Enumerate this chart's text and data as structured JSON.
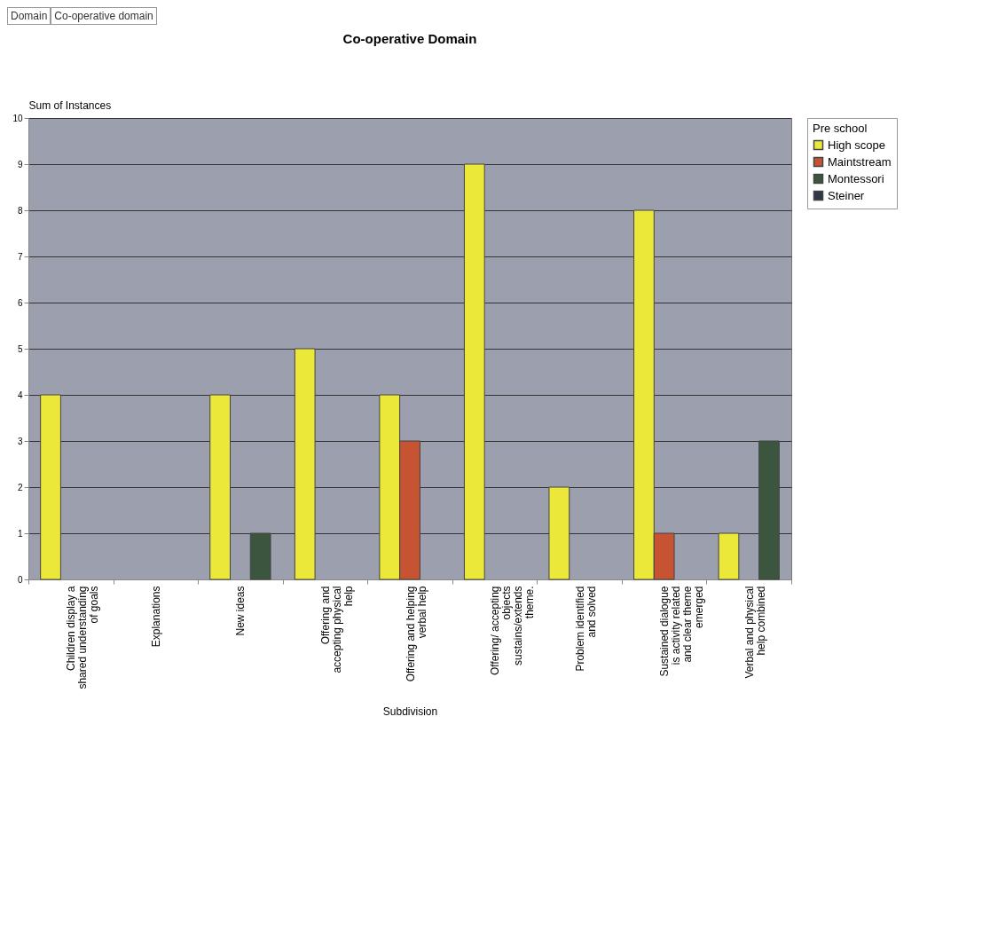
{
  "chart_data": {
    "type": "bar",
    "title": "Co-operative Domain",
    "xlabel": "Subdivision",
    "ylabel": "Sum of Instances",
    "legend_title": "Pre school",
    "annotations": [
      "Domain",
      "Co-operative domain"
    ],
    "categories": [
      "Children display a shared understanding of goals",
      "Explanations",
      "New ideas",
      "Offering and accepting physical help",
      "Offering and helping verbal help",
      "Offering/ accepting objects sustains/extends theme.",
      "Problem identified and solved",
      "Sustained dialogue is activity related and clear theme emerged",
      "Verbal and physical help combined"
    ],
    "series": [
      {
        "name": "High scope",
        "color": "#ece83a",
        "values": [
          4,
          null,
          4,
          5,
          4,
          9,
          2,
          8,
          1
        ]
      },
      {
        "name": "Maintstream",
        "color": "#c65432",
        "values": [
          null,
          null,
          null,
          null,
          3,
          null,
          null,
          1,
          null
        ]
      },
      {
        "name": "Montessori",
        "color": "#3b553f",
        "values": [
          null,
          null,
          1,
          null,
          null,
          null,
          null,
          null,
          3
        ]
      },
      {
        "name": "Steiner",
        "color": "#2e3846",
        "values": [
          null,
          null,
          null,
          null,
          null,
          null,
          null,
          null,
          null
        ]
      }
    ],
    "ylim": [
      0,
      10
    ],
    "yticks": [
      0,
      1,
      2,
      3,
      4,
      5,
      6,
      7,
      8,
      9,
      10
    ],
    "grid": "y",
    "legend": "right"
  }
}
